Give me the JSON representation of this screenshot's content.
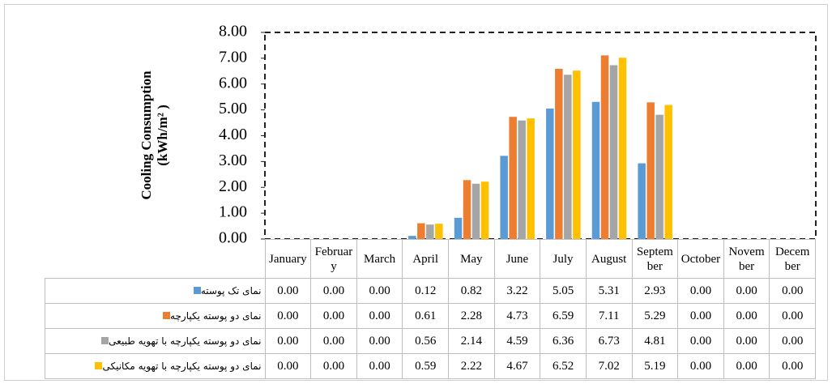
{
  "chart_data": {
    "type": "bar",
    "y_label": [
      "Cooling Consumption",
      "(kWh/m² )"
    ],
    "categories": [
      "January",
      "February",
      "March",
      "April",
      "May",
      "June",
      "July",
      "August",
      "September",
      "October",
      "November",
      "December"
    ],
    "series": [
      {
        "name": "نمای تک پوسته",
        "color": "#5b9bd5",
        "values": [
          0,
          0,
          0,
          0.12,
          0.82,
          3.22,
          5.05,
          5.31,
          2.93,
          0,
          0,
          0
        ],
        "value_labels": [
          "0.00",
          "0.00",
          "0.00",
          "0.12",
          "0.82",
          "3.22",
          "5.05",
          "5.31",
          "2.93",
          "0.00",
          "0.00",
          "0.00"
        ]
      },
      {
        "name": "نمای دو پوسته یکپارچه",
        "color": "#ed7d31",
        "values": [
          0,
          0,
          0,
          0.61,
          2.28,
          4.73,
          6.59,
          7.11,
          5.29,
          0,
          0,
          0
        ],
        "value_labels": [
          "0.00",
          "0.00",
          "0.00",
          "0.61",
          "2.28",
          "4.73",
          "6.59",
          "7.11",
          "5.29",
          "0.00",
          "0.00",
          "0.00"
        ]
      },
      {
        "name": "نمای دو پوسته یکپارچه با تهویه طبیعی",
        "color": "#a5a5a5",
        "values": [
          0,
          0,
          0,
          0.56,
          2.14,
          4.59,
          6.36,
          6.73,
          4.81,
          0,
          0,
          0
        ],
        "value_labels": [
          "0.00",
          "0.00",
          "0.00",
          "0.56",
          "2.14",
          "4.59",
          "6.36",
          "6.73",
          "4.81",
          "0.00",
          "0.00",
          "0.00"
        ]
      },
      {
        "name": "نمای دو پوسته یکپارچه با تهویه مکانیکی",
        "color": "#ffc000",
        "values": [
          0,
          0,
          0,
          0.59,
          2.22,
          4.67,
          6.52,
          7.02,
          5.19,
          0,
          0,
          0
        ],
        "value_labels": [
          "0.00",
          "0.00",
          "0.00",
          "0.59",
          "2.22",
          "4.67",
          "6.52",
          "7.02",
          "5.19",
          "0.00",
          "0.00",
          "0.00"
        ]
      }
    ],
    "ylim": [
      0,
      8
    ],
    "yticks": [
      {
        "value": 0,
        "label": "0.00"
      },
      {
        "value": 1,
        "label": "1.00"
      },
      {
        "value": 2,
        "label": "2.00"
      },
      {
        "value": 3,
        "label": "3.00"
      },
      {
        "value": 4,
        "label": "4.00"
      },
      {
        "value": 5,
        "label": "5.00"
      },
      {
        "value": 6,
        "label": "6.00"
      },
      {
        "value": 7,
        "label": "7.00"
      },
      {
        "value": 8,
        "label": "8.00"
      }
    ],
    "grid": false
  }
}
